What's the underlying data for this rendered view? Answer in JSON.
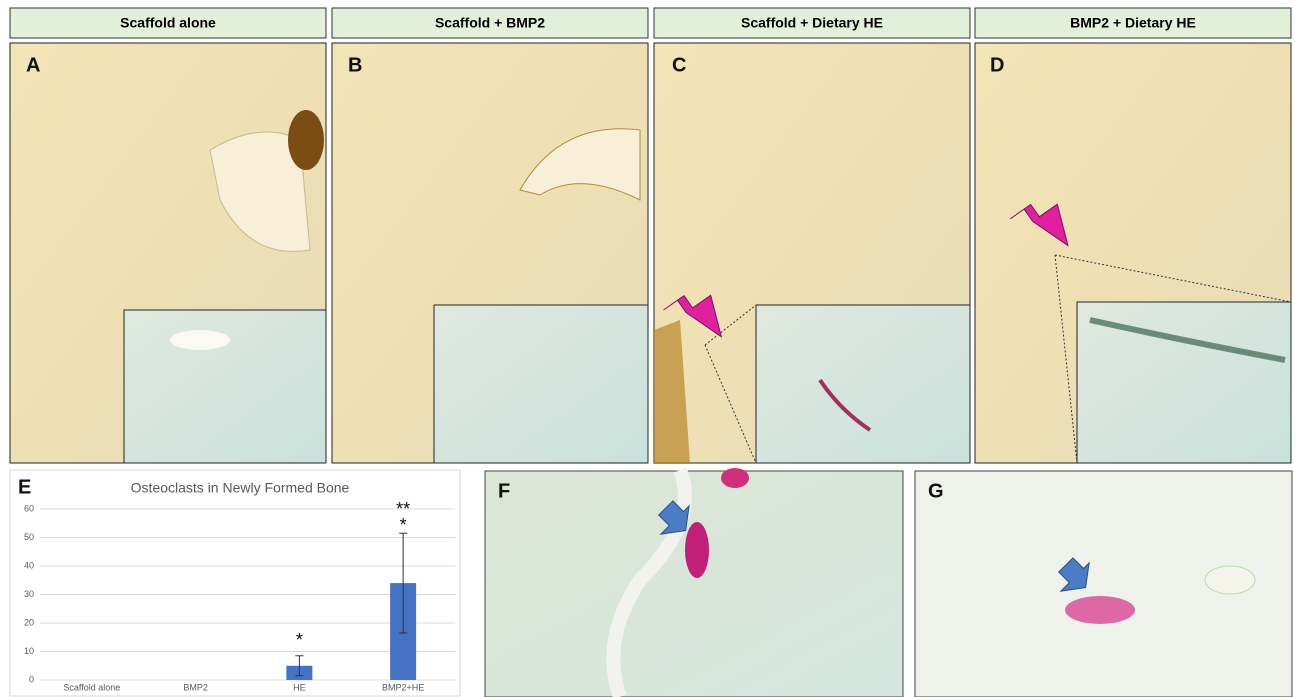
{
  "panels": [
    {
      "letter": "A",
      "title": "Scaffold alone"
    },
    {
      "letter": "B",
      "title": "Scaffold + BMP2"
    },
    {
      "letter": "C",
      "title": "Scaffold + Dietary HE"
    },
    {
      "letter": "D",
      "title": "BMP2 + Dietary HE"
    }
  ],
  "chart_data": {
    "type": "bar",
    "letter": "E",
    "title": "Osteoclasts in Newly Formed Bone",
    "categories": [
      "Scaffold alone",
      "BMP2",
      "HE",
      "BMP2+HE"
    ],
    "values": [
      0,
      0,
      5,
      34
    ],
    "errors": [
      0,
      0,
      3.5,
      17.5
    ],
    "color": "#4472c4",
    "ylim": [
      0,
      60
    ],
    "yticks": [
      0,
      10,
      20,
      30,
      40,
      50,
      60
    ],
    "grid": true,
    "annotations": [
      "*",
      "**",
      "*"
    ]
  },
  "details": [
    {
      "letter": "F"
    },
    {
      "letter": "G"
    }
  ]
}
